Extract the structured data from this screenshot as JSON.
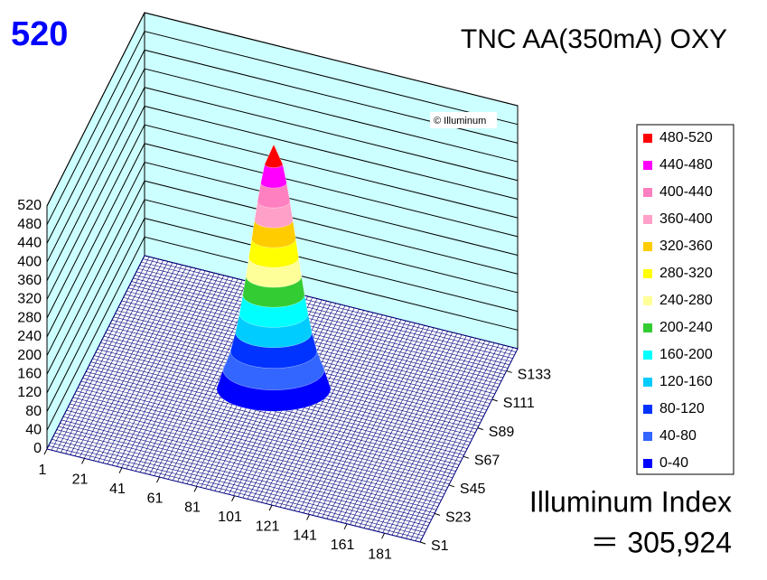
{
  "chart_data": {
    "type": "surface3d",
    "corner_label": "520",
    "title": "TNC AA(350mA) OXY",
    "watermark": "© Illuminum",
    "annotation": "Illuminum Index",
    "annotation_value": "＝ 305,924",
    "zlim": [
      0,
      520
    ],
    "zticks": [
      0,
      40,
      80,
      120,
      160,
      200,
      240,
      280,
      320,
      360,
      400,
      440,
      480,
      520
    ],
    "xlim": [
      1,
      200
    ],
    "xticks": [
      1,
      21,
      41,
      61,
      81,
      101,
      121,
      141,
      161,
      181
    ],
    "ylim": [
      1,
      150
    ],
    "yticks": [
      {
        "value": 1,
        "label": "S1"
      },
      {
        "value": 23,
        "label": "S23"
      },
      {
        "value": 45,
        "label": "S45"
      },
      {
        "value": 67,
        "label": "S67"
      },
      {
        "value": 89,
        "label": "S89"
      },
      {
        "value": 111,
        "label": "S111"
      },
      {
        "value": 133,
        "label": "S133"
      }
    ],
    "grid": true,
    "series": [
      {
        "name": "480-520",
        "color": "#ff0000"
      },
      {
        "name": "440-480",
        "color": "#ff00ff"
      },
      {
        "name": "400-440",
        "color": "#ff80c0"
      },
      {
        "name": "360-400",
        "color": "#ffa0c8"
      },
      {
        "name": "320-360",
        "color": "#ffcc00"
      },
      {
        "name": "280-320",
        "color": "#ffff00"
      },
      {
        "name": "240-280",
        "color": "#ffff99"
      },
      {
        "name": "200-240",
        "color": "#33cc33"
      },
      {
        "name": "160-200",
        "color": "#00ffff"
      },
      {
        "name": "120-160",
        "color": "#00ccff"
      },
      {
        "name": "80-120",
        "color": "#0033ff"
      },
      {
        "name": "40-80",
        "color": "#3366ff"
      },
      {
        "name": "0-40",
        "color": "#0000ff"
      }
    ]
  }
}
